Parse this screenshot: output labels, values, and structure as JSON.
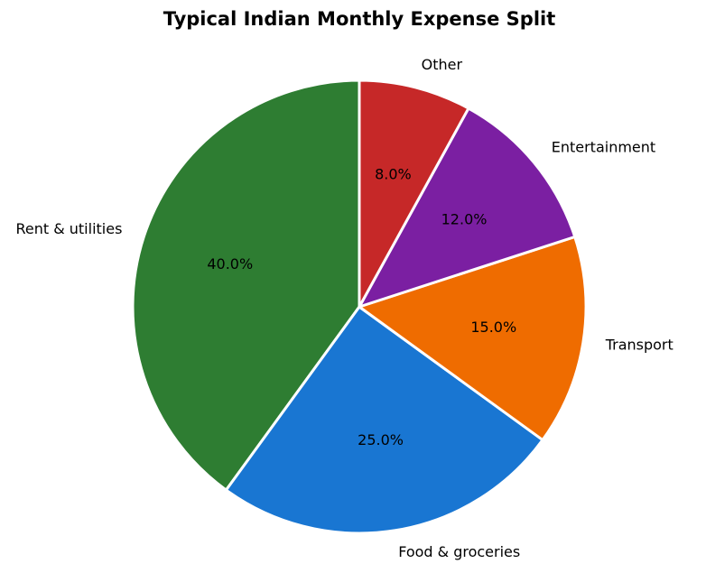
{
  "chart_data": {
    "type": "pie",
    "title": "Typical Indian Monthly Expense Split",
    "categories": [
      "Rent & utilities",
      "Food & groceries",
      "Transport",
      "Entertainment",
      "Other"
    ],
    "values": [
      40,
      25,
      15,
      12,
      8
    ],
    "value_labels": [
      "40.0%",
      "25.0%",
      "15.0%",
      "12.0%",
      "8.0%"
    ],
    "colors": [
      "#2e7d32",
      "#1976d2",
      "#ef6c00",
      "#7b1fa2",
      "#c62828"
    ]
  }
}
